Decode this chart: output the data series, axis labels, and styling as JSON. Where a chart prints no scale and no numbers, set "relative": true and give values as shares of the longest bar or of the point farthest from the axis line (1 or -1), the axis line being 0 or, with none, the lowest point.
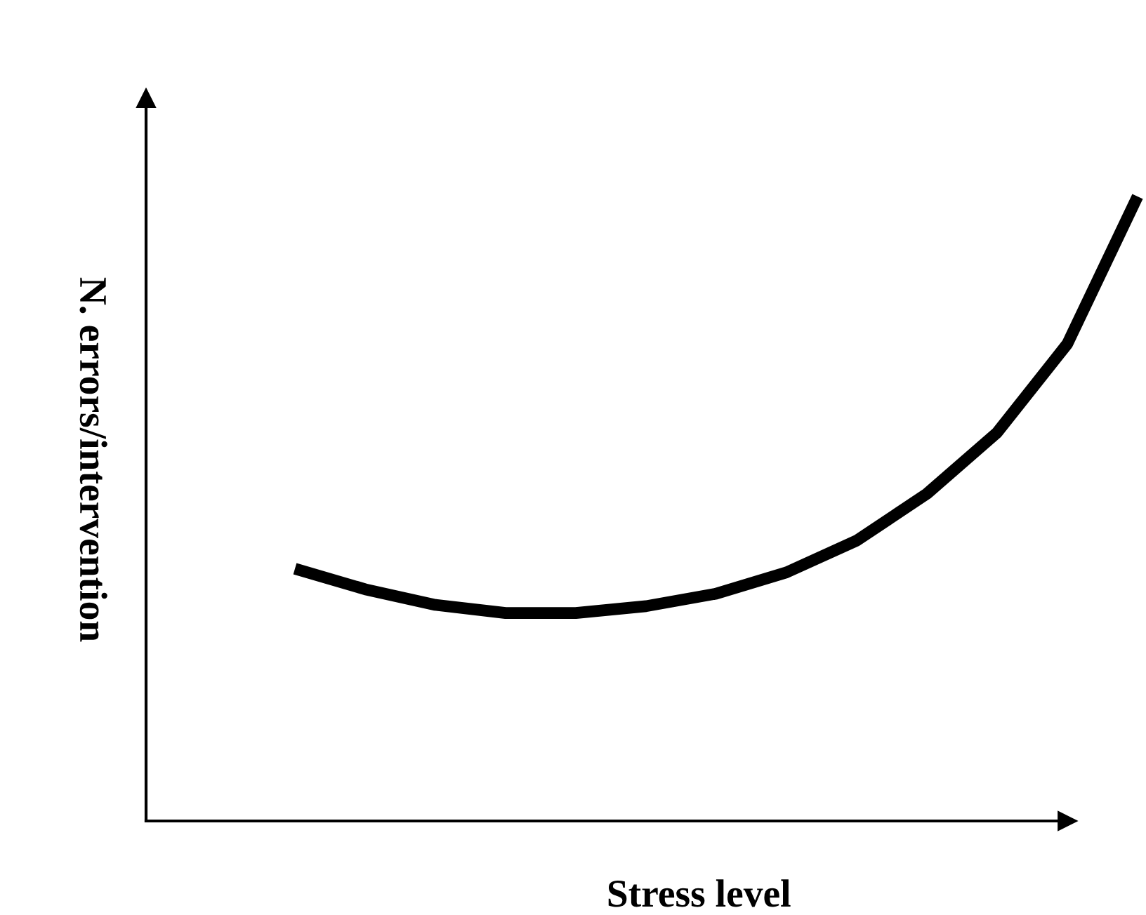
{
  "chart_data": {
    "type": "line",
    "relative": true,
    "xlabel": "Stress level",
    "ylabel": "N. errors/intervention",
    "categories": [
      null,
      null,
      null,
      null,
      null,
      null,
      null,
      null,
      null,
      null,
      null,
      null,
      null
    ],
    "series": [
      {
        "color": "#000000",
        "values": [
          0.404,
          0.371,
          0.346,
          0.333,
          0.333,
          0.344,
          0.364,
          0.398,
          0.449,
          0.524,
          0.622,
          0.764,
          1.0
        ]
      }
    ],
    "legend": false,
    "tick_labels": false,
    "marker": "none",
    "line_style": "solid"
  }
}
